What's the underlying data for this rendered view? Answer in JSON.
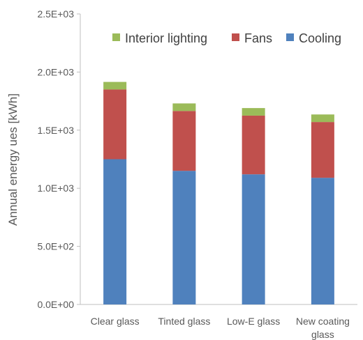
{
  "chart_data": {
    "type": "bar",
    "stacked": true,
    "categories": [
      "Clear glass",
      "Tinted glass",
      "Low-E glass",
      "New coating glass"
    ],
    "series": [
      {
        "name": "Cooling",
        "color": "#4f81bd",
        "values": [
          1250,
          1150,
          1120,
          1090
        ]
      },
      {
        "name": "Fans",
        "color": "#c0504d",
        "values": [
          600,
          515,
          505,
          480
        ]
      },
      {
        "name": "Interior lighting",
        "color": "#9bbb59",
        "values": [
          65,
          65,
          65,
          65
        ]
      }
    ],
    "ylabel": "Annual energy ues [kWh]",
    "ylim": [
      0,
      2500
    ],
    "yticks": [
      0,
      500,
      1000,
      1500,
      2000,
      2500
    ],
    "ytick_labels": [
      "0.0E+00",
      "5.0E+02",
      "1.0E+03",
      "1.5E+03",
      "2.0E+03",
      "2.5E+03"
    ],
    "legend_order": [
      "Interior lighting",
      "Fans",
      "Cooling"
    ],
    "legend_position": "top-right",
    "grid": false
  }
}
